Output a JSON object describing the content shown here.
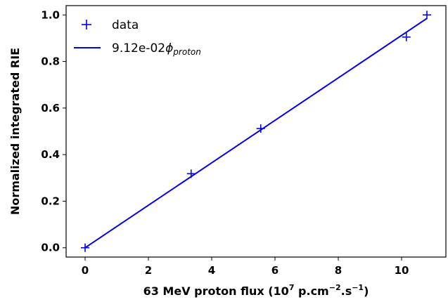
{
  "chart_data": {
    "type": "scatter",
    "xlabel_parts": {
      "prefix": "63 MeV proton flux (10",
      "exp1": "7",
      "mid": " p.cm",
      "exp2": "−2",
      "mid2": ".s",
      "exp3": "−1",
      "suffix": ")"
    },
    "ylabel": "Normalized integrated RIE",
    "xlim": [
      -0.6,
      11.4
    ],
    "ylim": [
      -0.04,
      1.04
    ],
    "xticks": [
      0,
      2,
      4,
      6,
      8,
      10
    ],
    "yticks": [
      0.0,
      0.2,
      0.4,
      0.6,
      0.8,
      1.0
    ],
    "xtick_labels": [
      "0",
      "2",
      "4",
      "6",
      "8",
      "10"
    ],
    "ytick_labels": [
      "0.0",
      "0.2",
      "0.4",
      "0.6",
      "0.8",
      "1.0"
    ],
    "grid": false,
    "legend_position": "top-left",
    "color": "#0000ee",
    "series": [
      {
        "name": "data",
        "kind": "scatter",
        "marker": "+",
        "x": [
          0.0,
          3.35,
          5.55,
          10.15,
          10.8
        ],
        "y": [
          0.0,
          0.318,
          0.512,
          0.905,
          1.0
        ]
      },
      {
        "name_parts": {
          "base": "9.12e-02",
          "symbol": "ϕ",
          "sub": "proton"
        },
        "kind": "line",
        "x": [
          0.0,
          10.8
        ],
        "y": [
          0.0,
          0.985
        ]
      }
    ]
  }
}
